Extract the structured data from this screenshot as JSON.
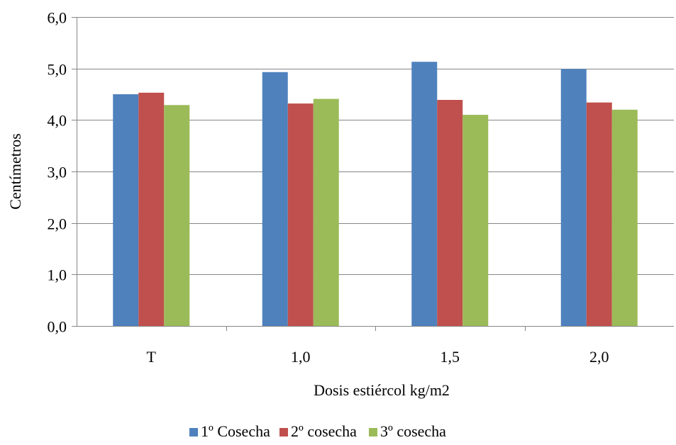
{
  "chart_data": {
    "type": "bar",
    "categories": [
      "T",
      "1,0",
      "1,5",
      "2,0"
    ],
    "series": [
      {
        "name": "1º Cosecha",
        "color": "#4F81BD",
        "values": [
          4.5,
          4.93,
          5.13,
          4.99
        ]
      },
      {
        "name": "2º cosecha",
        "color": "#C0504D",
        "values": [
          4.53,
          4.32,
          4.39,
          4.34
        ]
      },
      {
        "name": "3º cosecha",
        "color": "#9BBB59",
        "values": [
          4.29,
          4.41,
          4.1,
          4.2
        ]
      }
    ],
    "title": "",
    "xlabel": "Dosis estiércol  kg/m2",
    "ylabel": "Centímetros",
    "ylim": [
      0,
      6
    ],
    "yticks": [
      "0,0",
      "1,0",
      "2,0",
      "3,0",
      "4,0",
      "5,0",
      "6,0"
    ],
    "grid": true,
    "legend_position": "bottom"
  }
}
